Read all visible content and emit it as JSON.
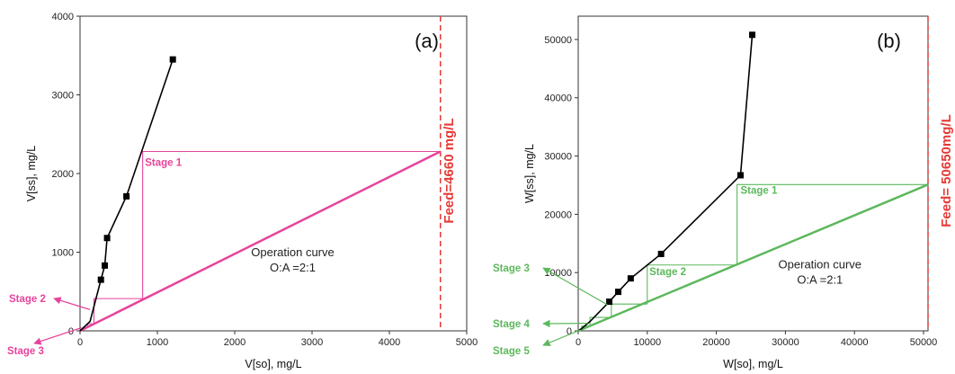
{
  "chart_data": [
    {
      "panel": "(a)",
      "type": "line",
      "xlabel": "V[so], mg/L",
      "ylabel": "V[ss], mg/L",
      "xlim": [
        0,
        5000
      ],
      "ylim": [
        0,
        4000
      ],
      "xticks": [
        0,
        1000,
        2000,
        3000,
        4000,
        5000
      ],
      "yticks": [
        0,
        1000,
        2000,
        3000,
        4000
      ],
      "color": "#e8439b",
      "equilibrium": {
        "x": [
          0,
          130,
          270,
          320,
          350,
          600,
          1200
        ],
        "y": [
          0,
          120,
          650,
          830,
          1180,
          1710,
          3450
        ],
        "markers": [
          false,
          false,
          true,
          true,
          true,
          true,
          true
        ]
      },
      "operation_line": {
        "x": [
          0,
          4660
        ],
        "y": [
          0,
          2280
        ]
      },
      "operation_label": [
        "Operation curve",
        "O:A =2:1"
      ],
      "operation_label_pos": [
        2750,
        860
      ],
      "feed": {
        "x": 4660,
        "label": "Feed=4660 mg/L"
      },
      "steps": [
        {
          "x": [
            4660,
            810,
            810
          ],
          "y": [
            2280,
            2280,
            410
          ]
        },
        {
          "x": [
            810,
            180,
            180
          ],
          "y": [
            410,
            410,
            90
          ]
        },
        {
          "x": [
            180,
            100,
            100
          ],
          "y": [
            90,
            90,
            40
          ]
        }
      ],
      "stages": [
        {
          "label": "Stage 1",
          "text_at": [
            840,
            2100
          ]
        },
        {
          "label": "Stage 2",
          "arrow_to": [
            130,
            270
          ]
        },
        {
          "label": "Stage 3",
          "arrow_to": [
            20,
            40
          ]
        }
      ]
    },
    {
      "panel": "(b)",
      "type": "line",
      "xlabel": "W[so], mg/L",
      "ylabel": "W[ss], mg/L",
      "xlim": [
        0,
        50650
      ],
      "ylim": [
        0,
        54000
      ],
      "xticks": [
        0,
        10000,
        20000,
        30000,
        40000,
        50000
      ],
      "yticks": [
        0,
        10000,
        20000,
        30000,
        40000,
        50000
      ],
      "color": "#5cb85c",
      "equilibrium": {
        "x": [
          0,
          500,
          1700,
          4500,
          5800,
          7600,
          12000,
          23500,
          25200
        ],
        "y": [
          0,
          400,
          1600,
          5000,
          6700,
          9000,
          13200,
          26700,
          50800
        ],
        "markers": [
          false,
          false,
          false,
          true,
          true,
          true,
          true,
          true,
          true
        ]
      },
      "operation_line": {
        "x": [
          0,
          50650
        ],
        "y": [
          0,
          25100
        ]
      },
      "operation_label": [
        "Operation curve",
        "O:A =2:1"
      ],
      "operation_label_pos": [
        35000,
        9500
      ],
      "feed": {
        "x": 50650,
        "label": "Feed= 50650mg/L"
      },
      "steps": [
        {
          "x": [
            50650,
            23000,
            23000
          ],
          "y": [
            25100,
            25100,
            11300
          ]
        },
        {
          "x": [
            23000,
            10000,
            10000
          ],
          "y": [
            11300,
            11300,
            4600
          ]
        },
        {
          "x": [
            10000,
            4800,
            4800
          ],
          "y": [
            4600,
            4600,
            2300
          ]
        },
        {
          "x": [
            4800,
            1700,
            1700
          ],
          "y": [
            2300,
            2300,
            800
          ]
        },
        {
          "x": [
            1700,
            500,
            500
          ],
          "y": [
            800,
            800,
            250
          ]
        }
      ],
      "stages": [
        {
          "label": "Stage 1",
          "text_at": [
            23500,
            23500
          ]
        },
        {
          "label": "Stage 2",
          "text_at": [
            10300,
            9600
          ]
        },
        {
          "label": "Stage 3",
          "arrow_to": [
            4200,
            4500
          ]
        },
        {
          "label": "Stage 4",
          "arrow_to": [
            1400,
            1300
          ]
        },
        {
          "label": "Stage 5",
          "arrow_to": [
            300,
            150
          ]
        }
      ]
    }
  ]
}
